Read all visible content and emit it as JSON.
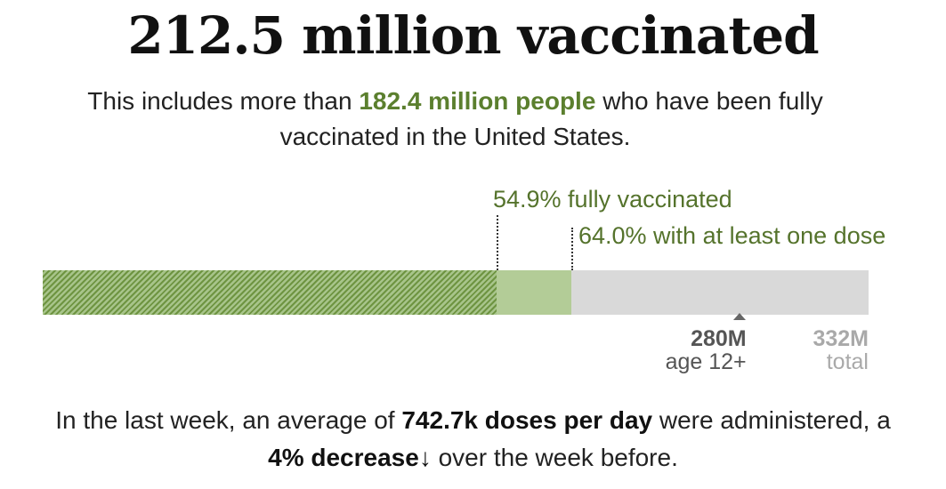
{
  "headline": "212.5 million vaccinated",
  "subhead": {
    "pre": "This includes more than ",
    "highlight": "182.4 million people",
    "post": " who have been fully vaccinated in the United States."
  },
  "chart_data": {
    "type": "bar",
    "orientation": "horizontal-stacked",
    "unit": "M",
    "xlim": [
      0,
      332
    ],
    "series": [
      {
        "value": 182.4,
        "pct_label": "54.9% fully vaccinated",
        "color": "#6e9441",
        "pattern": "hatched"
      },
      {
        "value": 212.5,
        "pct_label": "64.0% with at least one dose",
        "color": "#b3cc97"
      }
    ],
    "remaining_color": "#d9d9d9",
    "ticks": [
      {
        "value": 280,
        "label": "280M",
        "sublabel": "age 12+",
        "marker": true
      },
      {
        "value": 332,
        "label": "332M",
        "sublabel": "total",
        "marker": false
      }
    ]
  },
  "footer": {
    "pre": "In the last week, an average of ",
    "doses": "742.7k doses per day",
    "mid": " were administered, a ",
    "change": "4% decrease",
    "arrow": "↓",
    "post": " over the week before."
  },
  "colors": {
    "accent": "#5b7f2e",
    "label": "#55732c"
  }
}
